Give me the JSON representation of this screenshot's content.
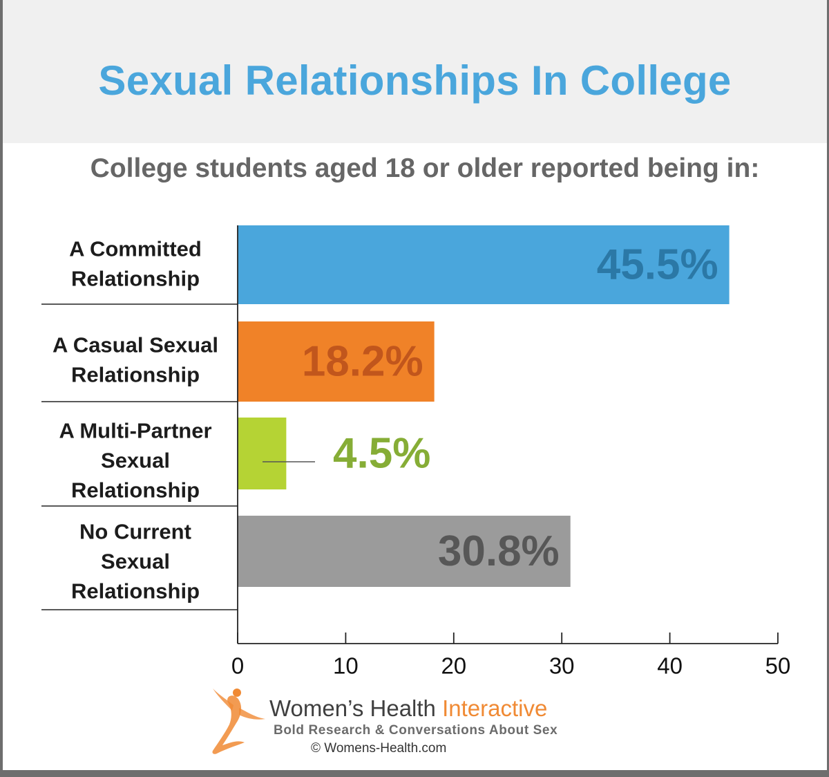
{
  "colors": {
    "title": "#4aa6dc",
    "committed": "#4aa6dc",
    "casual": "#f08228",
    "multi": "#b5d334",
    "none": "#9b9b9b"
  },
  "footer": {
    "brand_main": "Women’s Health",
    "brand_accent": "Interactive",
    "tagline": "Bold Research & Conversations About Sex",
    "copyright": "© Womens-Health.com",
    "logo_icon": "dancer-icon"
  },
  "chart_data": {
    "type": "bar",
    "orientation": "horizontal",
    "title": "Sexual Relationships In College",
    "subtitle": "College students aged 18 or older reported being in:",
    "categories": [
      [
        "A Committed",
        "Relationship"
      ],
      [
        "A Casual Sexual",
        "Relationship"
      ],
      [
        "A Multi-Partner",
        "Sexual",
        "Relationship"
      ],
      [
        "No Current",
        "Sexual",
        "Relationship"
      ]
    ],
    "values": [
      45.5,
      18.2,
      4.5,
      30.8
    ],
    "value_labels": [
      "45.5%",
      "18.2%",
      "4.5%",
      "30.8%"
    ],
    "bar_colors": [
      "#4aa6dc",
      "#f08228",
      "#b5d334",
      "#9b9b9b"
    ],
    "label_colors": [
      "#2b78a6",
      "#c1561c",
      "#86ad36",
      "#575757"
    ],
    "xlim": [
      0,
      50
    ],
    "xticks": [
      0,
      10,
      20,
      30,
      40,
      50
    ]
  }
}
